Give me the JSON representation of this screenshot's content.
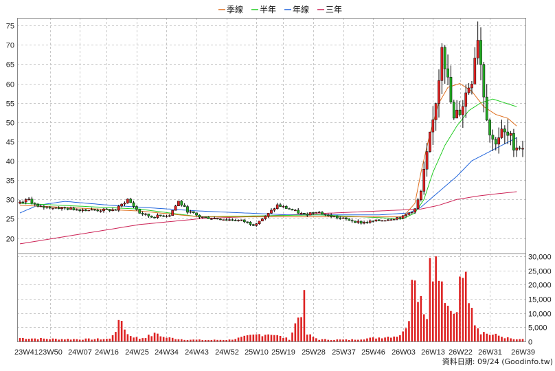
{
  "legend": {
    "items": [
      {
        "label": "季線",
        "color": "#e07020"
      },
      {
        "label": "半年",
        "color": "#22cc22"
      },
      {
        "label": "年線",
        "color": "#2266dd"
      },
      {
        "label": "三年",
        "color": "#cc2255"
      }
    ]
  },
  "credit": "資料日期: 09/24 (Goodinfo.tw)",
  "chart_data": {
    "type": "candlestick+volume",
    "x_tick_labels": [
      "23W41",
      "23W50",
      "24W07",
      "24W16",
      "24W25",
      "24W34",
      "24W43",
      "24W52",
      "25W10",
      "25W19",
      "25W28",
      "25W37",
      "25W46",
      "26W03",
      "26W13",
      "26W22",
      "26W31",
      "26W39"
    ],
    "price_axis": {
      "min": 16,
      "max": 77,
      "ticks": [
        20,
        25,
        30,
        35,
        40,
        45,
        50,
        55,
        60,
        65,
        70,
        75
      ]
    },
    "volume_axis": {
      "min": 0,
      "max": 31000,
      "ticks": [
        0,
        5000,
        10000,
        15000,
        20000,
        25000,
        30000
      ],
      "tick_labels": [
        "0",
        "5,000",
        "10,000",
        "15,000",
        "20,000",
        "25,000",
        "30,000"
      ]
    },
    "grid": true,
    "colors": {
      "up": "#dd2222",
      "down": "#22aa22",
      "volume": "#dd2222"
    },
    "price_anchors": [
      [
        0,
        29
      ],
      [
        3,
        30
      ],
      [
        6,
        28
      ],
      [
        10,
        28
      ],
      [
        18,
        27.5
      ],
      [
        25,
        27.2
      ],
      [
        32,
        27.3
      ],
      [
        36,
        30
      ],
      [
        40,
        26.5
      ],
      [
        44,
        25.5
      ],
      [
        50,
        26
      ],
      [
        53,
        29.5
      ],
      [
        56,
        27
      ],
      [
        60,
        25.5
      ],
      [
        66,
        25
      ],
      [
        74,
        24.5
      ],
      [
        78,
        23.5
      ],
      [
        82,
        25.5
      ],
      [
        86,
        28.5
      ],
      [
        90,
        27.5
      ],
      [
        95,
        26
      ],
      [
        99,
        27
      ],
      [
        102,
        26
      ],
      [
        108,
        25
      ],
      [
        114,
        24
      ],
      [
        120,
        24.5
      ],
      [
        128,
        25.5
      ],
      [
        132,
        27.5
      ],
      [
        134,
        32
      ],
      [
        136,
        41
      ],
      [
        138,
        50
      ],
      [
        140,
        62
      ],
      [
        141,
        72
      ],
      [
        143,
        60
      ],
      [
        145,
        50
      ],
      [
        148,
        55
      ],
      [
        151,
        62
      ],
      [
        152,
        68
      ],
      [
        153,
        73
      ],
      [
        155,
        58
      ],
      [
        157,
        47
      ],
      [
        158,
        45
      ],
      [
        161,
        47
      ],
      [
        163,
        46
      ],
      [
        166,
        44
      ],
      [
        168,
        44
      ]
    ],
    "volume_anchors": [
      [
        0,
        1200
      ],
      [
        10,
        900
      ],
      [
        20,
        800
      ],
      [
        30,
        900
      ],
      [
        34,
        7500
      ],
      [
        36,
        2500
      ],
      [
        40,
        1000
      ],
      [
        46,
        2800
      ],
      [
        48,
        1500
      ],
      [
        55,
        700
      ],
      [
        62,
        500
      ],
      [
        70,
        600
      ],
      [
        80,
        2500
      ],
      [
        84,
        2800
      ],
      [
        86,
        2000
      ],
      [
        90,
        800
      ],
      [
        95,
        14000
      ],
      [
        96,
        2500
      ],
      [
        100,
        700
      ],
      [
        110,
        600
      ],
      [
        118,
        1200
      ],
      [
        126,
        2000
      ],
      [
        128,
        3000
      ],
      [
        130,
        9000
      ],
      [
        131,
        31000
      ],
      [
        132,
        20000
      ],
      [
        134,
        17000
      ],
      [
        136,
        8000
      ],
      [
        137,
        31000
      ],
      [
        138,
        30000
      ],
      [
        140,
        22000
      ],
      [
        142,
        15000
      ],
      [
        143,
        10000
      ],
      [
        145,
        9000
      ],
      [
        146,
        12000
      ],
      [
        147,
        25000
      ],
      [
        148,
        30000
      ],
      [
        149,
        20000
      ],
      [
        151,
        16000
      ],
      [
        152,
        7000
      ],
      [
        154,
        3500
      ],
      [
        157,
        2500
      ],
      [
        160,
        2000
      ],
      [
        163,
        1200
      ],
      [
        166,
        600
      ],
      [
        168,
        900
      ]
    ],
    "ma_quarter": [
      [
        0,
        28.5
      ],
      [
        40,
        27
      ],
      [
        60,
        25.5
      ],
      [
        100,
        25.5
      ],
      [
        128,
        25.5
      ],
      [
        132,
        29
      ],
      [
        134,
        37
      ],
      [
        137,
        47
      ],
      [
        140,
        55
      ],
      [
        143,
        59
      ],
      [
        147,
        60
      ],
      [
        151,
        58
      ],
      [
        155,
        54
      ],
      [
        159,
        52
      ],
      [
        163,
        51
      ],
      [
        166,
        49
      ]
    ],
    "ma_halfyear": [
      [
        0,
        29
      ],
      [
        40,
        27.5
      ],
      [
        60,
        25.5
      ],
      [
        100,
        26
      ],
      [
        128,
        25
      ],
      [
        132,
        26.5
      ],
      [
        135,
        30
      ],
      [
        138,
        37
      ],
      [
        142,
        44
      ],
      [
        146,
        49
      ],
      [
        150,
        53
      ],
      [
        154,
        55
      ],
      [
        158,
        56
      ],
      [
        162,
        55
      ],
      [
        166,
        54
      ]
    ],
    "ma_year": [
      [
        0,
        26.5
      ],
      [
        6,
        28.5
      ],
      [
        15,
        29.5
      ],
      [
        30,
        28.5
      ],
      [
        60,
        27
      ],
      [
        90,
        26
      ],
      [
        120,
        26
      ],
      [
        130,
        26.5
      ],
      [
        134,
        28
      ],
      [
        140,
        32
      ],
      [
        146,
        36
      ],
      [
        151,
        40
      ],
      [
        156,
        42
      ],
      [
        161,
        44
      ],
      [
        166,
        46
      ]
    ],
    "ma_3year": [
      [
        0,
        18.5
      ],
      [
        20,
        21
      ],
      [
        40,
        23.5
      ],
      [
        60,
        25
      ],
      [
        90,
        26
      ],
      [
        120,
        27
      ],
      [
        134,
        27.5
      ],
      [
        140,
        28.5
      ],
      [
        146,
        30
      ],
      [
        154,
        31
      ],
      [
        166,
        32
      ]
    ]
  }
}
